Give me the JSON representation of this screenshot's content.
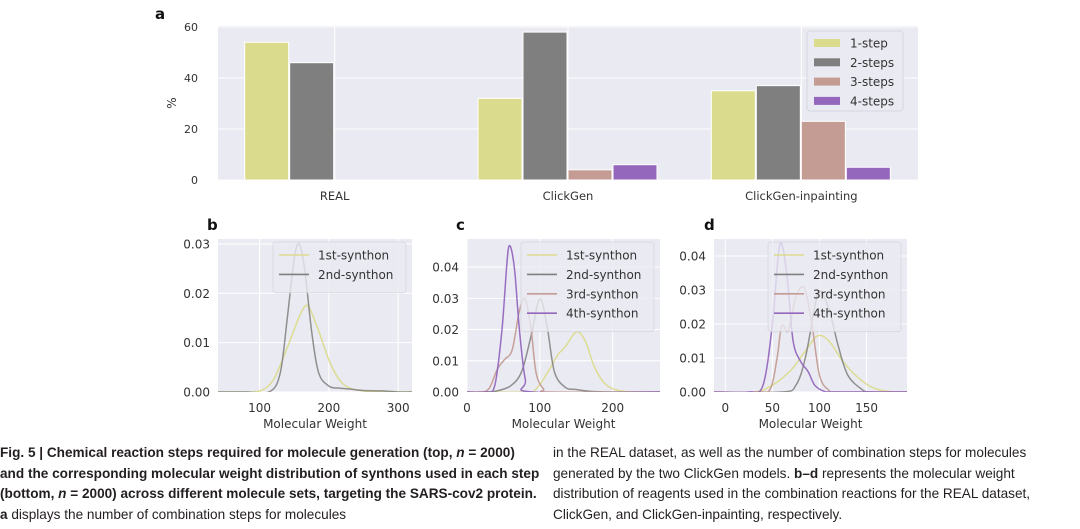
{
  "figure": {
    "panel_labels": [
      "a",
      "b",
      "c",
      "d"
    ],
    "caption": {
      "left": {
        "bold_part1": "Fig. 5 | Chemical reaction steps required for molecule generation (top, ",
        "n1_italic": "n",
        "bold_part2": " = 2000) and the corresponding molecular weight distribution of synthons used in each step (bottom, ",
        "n2_italic": "n",
        "bold_part3": " = 2000) across different molecule sets, targeting the SARS-cov2 protein. ",
        "bold_a": "a",
        "regular": " displays the number of combination steps for molecules"
      },
      "right": {
        "regular1": "in the REAL dataset, as well as the number of combination steps for molecules generated by the two ClickGen models. ",
        "bold_bd": "b–d",
        "regular2": " represents the molecular weight distribution of reagents used in the combination reactions for the REAL dataset, ClickGen, and ClickGen-inpainting, respectively."
      }
    }
  },
  "colors": {
    "background": "#eaeaf2",
    "grid": "#ffffff",
    "text": "#333333",
    "s1": "#dbdb8d",
    "s2": "#7f7f7f",
    "s3": "#c49c94",
    "s4": "#9467bd"
  },
  "chart_data": [
    {
      "panel": "a",
      "type": "bar",
      "title": "",
      "xlabel": "",
      "ylabel": "%",
      "ylim": [
        0,
        60
      ],
      "yticks": [
        0,
        20,
        40,
        60
      ],
      "grid": true,
      "legend_position": "top-right",
      "categories": [
        "REAL",
        "ClickGen",
        "ClickGen-inpainting"
      ],
      "series": [
        {
          "name": "1-step",
          "values": [
            54,
            32,
            35
          ]
        },
        {
          "name": "2-steps",
          "values": [
            46,
            58,
            37
          ]
        },
        {
          "name": "3-steps",
          "values": [
            0,
            4,
            23
          ]
        },
        {
          "name": "4-steps",
          "values": [
            0,
            6,
            5
          ]
        }
      ]
    },
    {
      "panel": "b",
      "type": "line",
      "xlabel": "Molecular Weight",
      "ylabel": "",
      "xlim": [
        40,
        320
      ],
      "ylim": [
        0,
        0.031
      ],
      "xticks": [
        100,
        200,
        300
      ],
      "yticks": [
        "0.00",
        "0.01",
        "0.02",
        "0.03"
      ],
      "grid": true,
      "legend_position": "top-right",
      "series": [
        {
          "name": "1st-synthon",
          "x": [
            70,
            100,
            120,
            140,
            155,
            165,
            172,
            185,
            200,
            215,
            230,
            250,
            270,
            300
          ],
          "y": [
            0,
            0.0002,
            0.0025,
            0.009,
            0.0145,
            0.0173,
            0.017,
            0.0125,
            0.0065,
            0.0025,
            0.0008,
            0.0002,
            0.0001,
            0
          ]
        },
        {
          "name": "2nd-synthon",
          "x": [
            80,
            115,
            130,
            140,
            150,
            157,
            165,
            175,
            185,
            200,
            215,
            230,
            250,
            280,
            300
          ],
          "y": [
            0,
            0.0001,
            0.004,
            0.015,
            0.027,
            0.03,
            0.025,
            0.0125,
            0.004,
            0.0012,
            0.0008,
            0.0006,
            0.0003,
            0.0002,
            0
          ]
        }
      ]
    },
    {
      "panel": "c",
      "type": "line",
      "xlabel": "Molecular Weight",
      "ylabel": "",
      "xlim": [
        0,
        265
      ],
      "ylim": [
        0,
        0.049
      ],
      "xticks": [
        0,
        100,
        200
      ],
      "yticks": [
        "0.00",
        "0.01",
        "0.02",
        "0.03",
        "0.04"
      ],
      "grid": true,
      "legend_position": "top-right",
      "series": [
        {
          "name": "1st-synthon",
          "x": [
            80,
            95,
            110,
            125,
            135,
            150,
            162,
            175,
            190,
            210,
            240
          ],
          "y": [
            0,
            0.001,
            0.006,
            0.012,
            0.0145,
            0.0192,
            0.0165,
            0.008,
            0.0025,
            0.0004,
            0
          ]
        },
        {
          "name": "2nd-synthon",
          "x": [
            20,
            40,
            60,
            75,
            88,
            100,
            110,
            120,
            135,
            150,
            170,
            200
          ],
          "y": [
            0,
            0.0003,
            0.002,
            0.0065,
            0.018,
            0.0298,
            0.021,
            0.0065,
            0.0015,
            0.0008,
            0.0002,
            0
          ]
        },
        {
          "name": "3rd-synthon",
          "x": [
            15,
            30,
            42,
            52,
            62,
            72,
            80,
            88,
            95,
            105,
            115
          ],
          "y": [
            0,
            0.001,
            0.0075,
            0.0105,
            0.0135,
            0.026,
            0.0298,
            0.02,
            0.006,
            0.001,
            0
          ]
        },
        {
          "name": "4th-synthon",
          "x": [
            25,
            38,
            48,
            55,
            58,
            62,
            66,
            72,
            80,
            90
          ],
          "y": [
            0,
            0.002,
            0.02,
            0.042,
            0.0468,
            0.0445,
            0.0375,
            0.02,
            0.004,
            0
          ]
        }
      ]
    },
    {
      "panel": "d",
      "type": "line",
      "xlabel": "Molecular Weight",
      "ylabel": "",
      "xlim": [
        -12,
        193
      ],
      "ylim": [
        0,
        0.045
      ],
      "xticks": [
        0,
        50,
        100,
        150
      ],
      "yticks": [
        "0.00",
        "0.01",
        "0.02",
        "0.03",
        "0.04"
      ],
      "grid": true,
      "legend_position": "top-right",
      "series": [
        {
          "name": "1st-synthon",
          "x": [
            30,
            50,
            70,
            85,
            98,
            110,
            125,
            140,
            155,
            170,
            185
          ],
          "y": [
            0,
            0.002,
            0.0065,
            0.012,
            0.0165,
            0.015,
            0.009,
            0.0045,
            0.0015,
            0.0003,
            0
          ]
        },
        {
          "name": "2nd-synthon",
          "x": [
            60,
            75,
            85,
            95,
            100,
            110,
            120,
            130,
            145,
            155
          ],
          "y": [
            0,
            0.002,
            0.01,
            0.025,
            0.0298,
            0.0245,
            0.0135,
            0.005,
            0.0008,
            0
          ]
        },
        {
          "name": "3rd-synthon",
          "x": [
            35,
            48,
            55,
            60,
            67,
            75,
            84,
            92,
            100,
            110,
            120
          ],
          "y": [
            0,
            0.001,
            0.01,
            0.0195,
            0.018,
            0.028,
            0.0305,
            0.02,
            0.005,
            0.0005,
            0
          ]
        },
        {
          "name": "4th-synthon",
          "x": [
            25,
            40,
            50,
            56,
            60,
            66,
            72,
            80,
            88,
            95,
            105,
            115
          ],
          "y": [
            0,
            0.002,
            0.02,
            0.0395,
            0.0435,
            0.033,
            0.015,
            0.009,
            0.006,
            0.002,
            0.0002,
            0
          ]
        }
      ]
    }
  ]
}
